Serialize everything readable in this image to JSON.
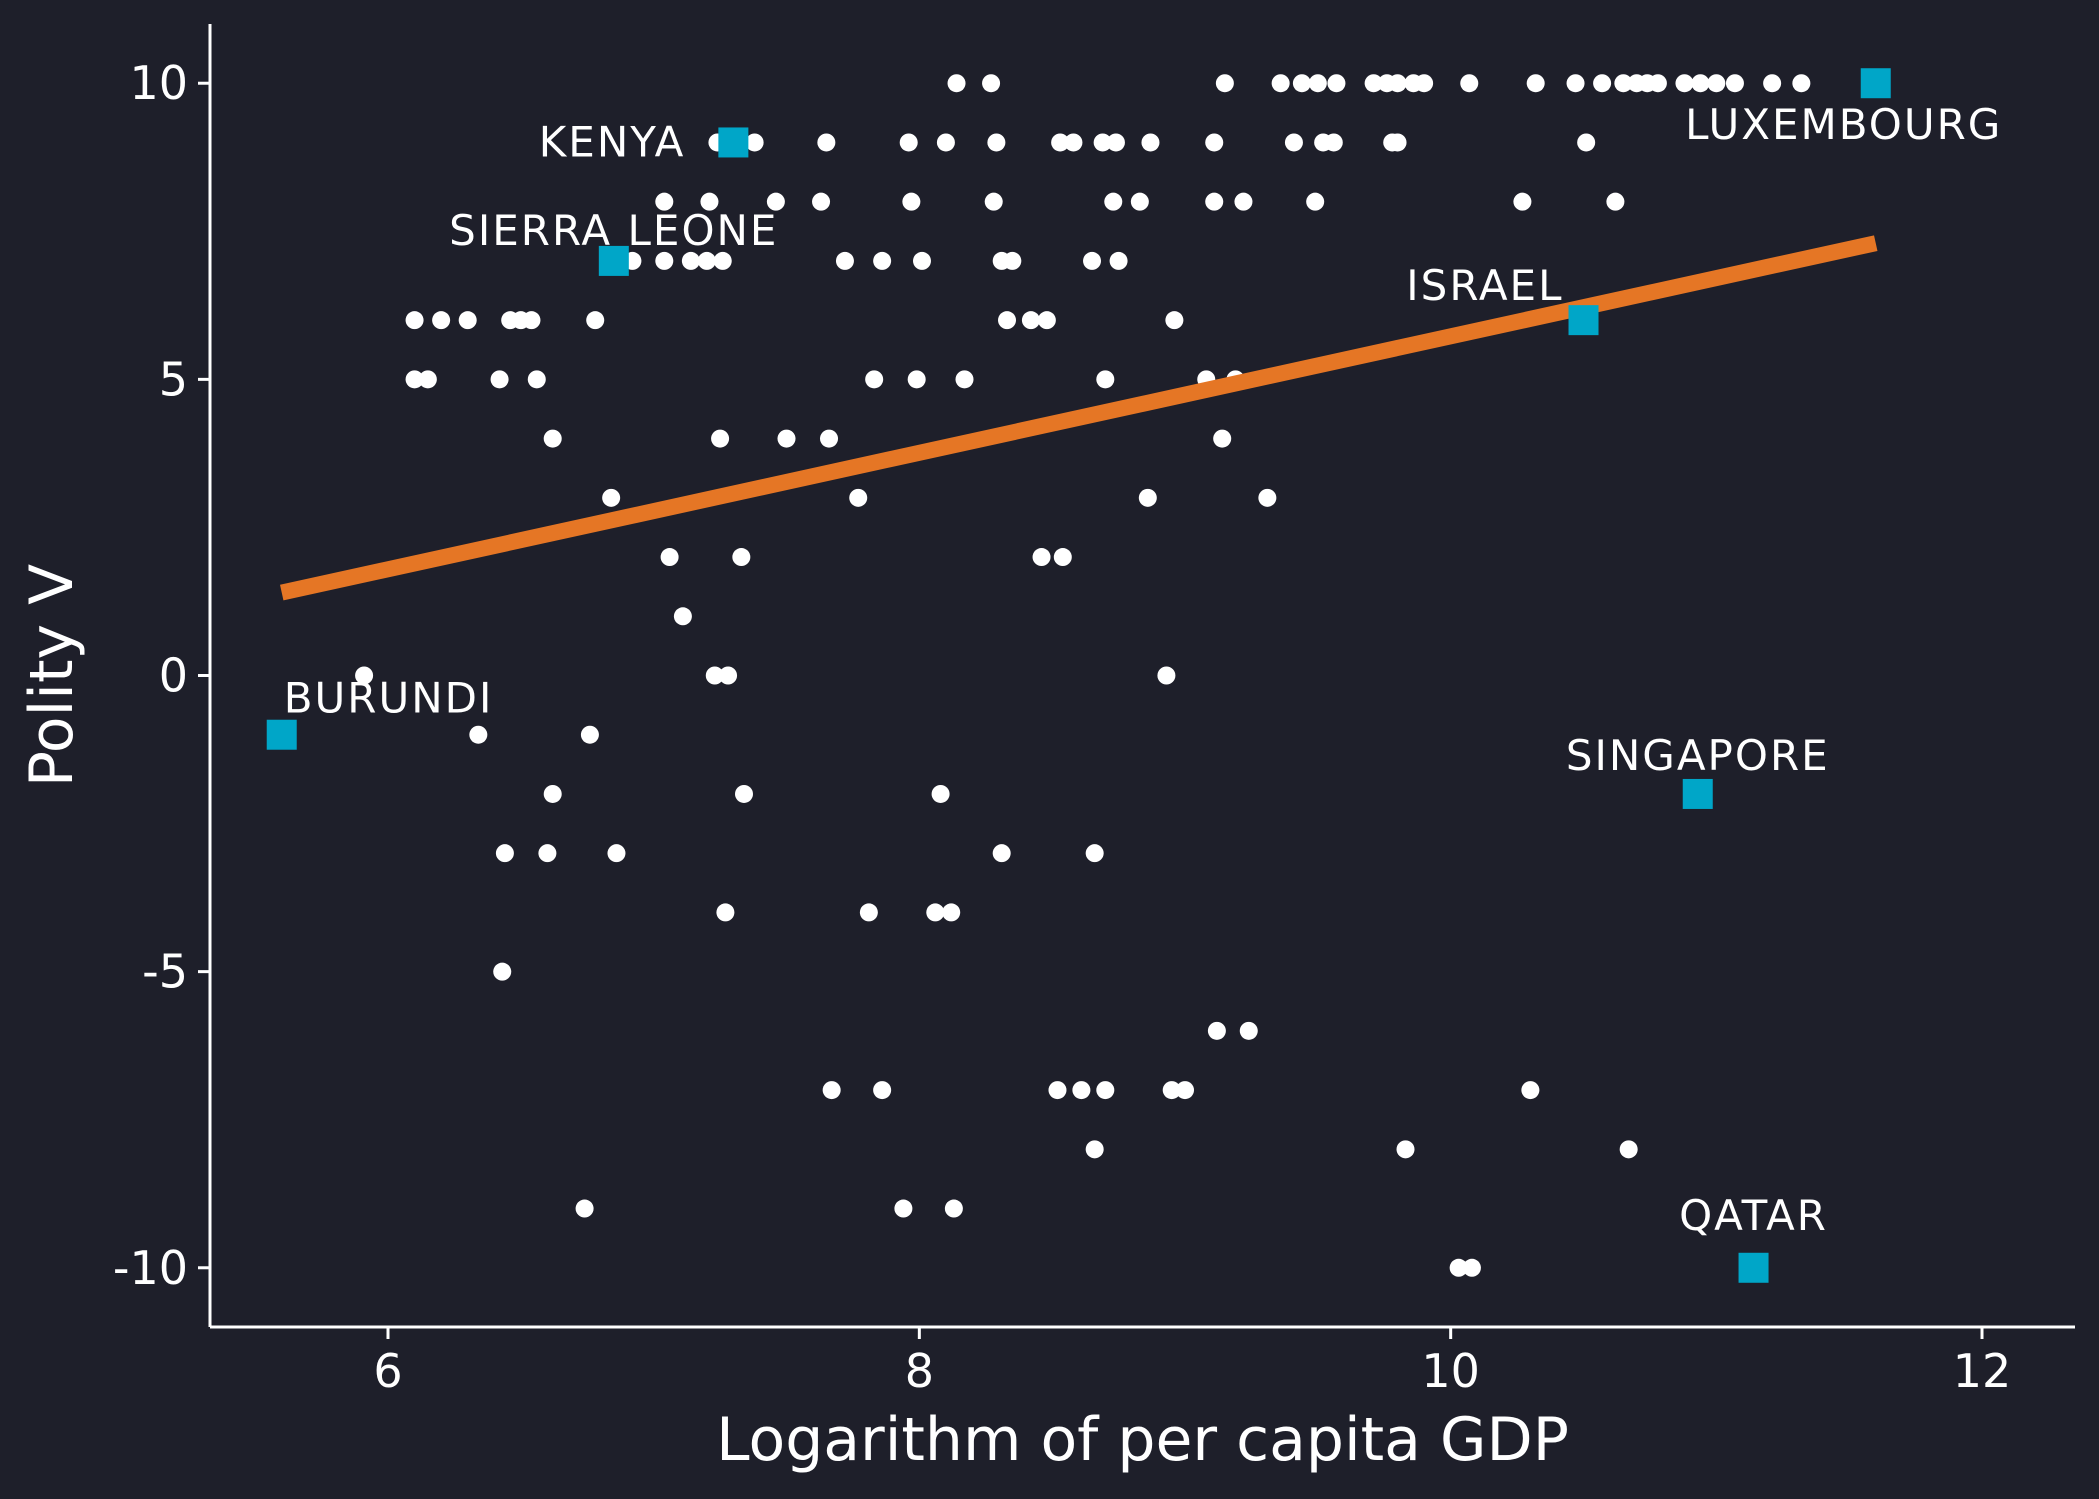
{
  "chart_data": {
    "type": "scatter",
    "title": "",
    "xlabel": "Logarithm of per capita GDP",
    "ylabel": "Polity V",
    "xlim": [
      5.33,
      12.35
    ],
    "ylim": [
      -11.0,
      11.0
    ],
    "xticks": [
      6,
      8,
      10,
      12
    ],
    "yticks": [
      -10,
      -5,
      0,
      5,
      10
    ],
    "ytick_labels": [
      "-10",
      "-5",
      "0",
      "5",
      "10"
    ],
    "grid": false,
    "legend": "none",
    "colors": {
      "background": "#1e1f2a",
      "points": "#ffffff",
      "highlight": "#00a6c8",
      "trend": "#e57625",
      "axis": "#ffffff"
    },
    "trend_line": {
      "x": [
        5.6,
        11.6
      ],
      "y": [
        1.4,
        7.3
      ]
    },
    "highlighted": [
      {
        "label": "KENYA",
        "x": 7.3,
        "y": 9
      },
      {
        "label": "SIERRA LEONE",
        "x": 6.85,
        "y": 7
      },
      {
        "label": "BURUNDI",
        "x": 5.6,
        "y": -1
      },
      {
        "label": "ISRAEL",
        "x": 10.5,
        "y": 6
      },
      {
        "label": "SINGAPORE",
        "x": 10.93,
        "y": -2
      },
      {
        "label": "QATAR",
        "x": 11.14,
        "y": -10
      },
      {
        "label": "LUXEMBOURG",
        "x": 11.6,
        "y": 10
      }
    ],
    "series": [
      {
        "points": [
          [
            8.14,
            10
          ],
          [
            8.27,
            10
          ],
          [
            9.15,
            10
          ],
          [
            9.36,
            10
          ],
          [
            9.44,
            10
          ],
          [
            9.5,
            10
          ],
          [
            9.57,
            10
          ],
          [
            9.71,
            10
          ],
          [
            9.76,
            10
          ],
          [
            9.8,
            10
          ],
          [
            9.86,
            10
          ],
          [
            9.9,
            10
          ],
          [
            10.07,
            10
          ],
          [
            10.32,
            10
          ],
          [
            10.47,
            10
          ],
          [
            10.57,
            10
          ],
          [
            10.65,
            10
          ],
          [
            10.7,
            10
          ],
          [
            10.74,
            10
          ],
          [
            10.78,
            10
          ],
          [
            10.88,
            10
          ],
          [
            10.94,
            10
          ],
          [
            11.0,
            10
          ],
          [
            11.07,
            10
          ],
          [
            11.21,
            10
          ],
          [
            11.32,
            10
          ],
          [
            7.24,
            9
          ],
          [
            7.38,
            9
          ],
          [
            7.65,
            9
          ],
          [
            7.96,
            9
          ],
          [
            8.1,
            9
          ],
          [
            8.29,
            9
          ],
          [
            8.53,
            9
          ],
          [
            8.58,
            9
          ],
          [
            8.69,
            9
          ],
          [
            8.74,
            9
          ],
          [
            8.87,
            9
          ],
          [
            9.11,
            9
          ],
          [
            9.41,
            9
          ],
          [
            9.52,
            9
          ],
          [
            9.56,
            9
          ],
          [
            9.78,
            9
          ],
          [
            9.8,
            9
          ],
          [
            10.51,
            9
          ],
          [
            7.04,
            8
          ],
          [
            7.21,
            8
          ],
          [
            7.46,
            8
          ],
          [
            7.63,
            8
          ],
          [
            7.97,
            8
          ],
          [
            8.28,
            8
          ],
          [
            8.73,
            8
          ],
          [
            8.83,
            8
          ],
          [
            9.11,
            8
          ],
          [
            9.22,
            8
          ],
          [
            9.49,
            8
          ],
          [
            10.27,
            8
          ],
          [
            10.62,
            8
          ],
          [
            6.92,
            7
          ],
          [
            7.04,
            7
          ],
          [
            7.14,
            7
          ],
          [
            7.2,
            7
          ],
          [
            7.26,
            7
          ],
          [
            7.72,
            7
          ],
          [
            7.86,
            7
          ],
          [
            8.01,
            7
          ],
          [
            8.31,
            7
          ],
          [
            8.35,
            7
          ],
          [
            8.65,
            7
          ],
          [
            8.75,
            7
          ],
          [
            6.1,
            6
          ],
          [
            6.2,
            6
          ],
          [
            6.3,
            6
          ],
          [
            6.46,
            6
          ],
          [
            6.5,
            6
          ],
          [
            6.54,
            6
          ],
          [
            6.78,
            6
          ],
          [
            8.33,
            6
          ],
          [
            8.42,
            6
          ],
          [
            8.48,
            6
          ],
          [
            8.96,
            6
          ],
          [
            6.1,
            5
          ],
          [
            6.15,
            5
          ],
          [
            6.42,
            5
          ],
          [
            6.56,
            5
          ],
          [
            7.83,
            5
          ],
          [
            7.99,
            5
          ],
          [
            8.17,
            5
          ],
          [
            8.7,
            5
          ],
          [
            9.08,
            5
          ],
          [
            9.19,
            5
          ],
          [
            6.62,
            4
          ],
          [
            7.25,
            4
          ],
          [
            7.5,
            4
          ],
          [
            7.66,
            4
          ],
          [
            9.14,
            4
          ],
          [
            6.84,
            3
          ],
          [
            7.77,
            3
          ],
          [
            8.86,
            3
          ],
          [
            9.31,
            3
          ],
          [
            7.06,
            2
          ],
          [
            7.33,
            2
          ],
          [
            8.46,
            2
          ],
          [
            8.54,
            2
          ],
          [
            7.11,
            1
          ],
          [
            5.91,
            0
          ],
          [
            7.23,
            0
          ],
          [
            7.28,
            0
          ],
          [
            8.93,
            0
          ],
          [
            6.34,
            -1
          ],
          [
            6.76,
            -1
          ],
          [
            6.62,
            -2
          ],
          [
            7.34,
            -2
          ],
          [
            8.08,
            -2
          ],
          [
            6.44,
            -3
          ],
          [
            6.6,
            -3
          ],
          [
            6.86,
            -3
          ],
          [
            8.31,
            -3
          ],
          [
            8.66,
            -3
          ],
          [
            7.27,
            -4
          ],
          [
            7.81,
            -4
          ],
          [
            8.06,
            -4
          ],
          [
            8.12,
            -4
          ],
          [
            6.43,
            -5
          ],
          [
            9.12,
            -6
          ],
          [
            9.24,
            -6
          ],
          [
            7.67,
            -7
          ],
          [
            7.86,
            -7
          ],
          [
            8.52,
            -7
          ],
          [
            8.61,
            -7
          ],
          [
            8.7,
            -7
          ],
          [
            8.95,
            -7
          ],
          [
            9.0,
            -7
          ],
          [
            10.3,
            -7
          ],
          [
            8.66,
            -8
          ],
          [
            9.83,
            -8
          ],
          [
            10.67,
            -8
          ],
          [
            6.74,
            -9
          ],
          [
            7.94,
            -9
          ],
          [
            8.13,
            -9
          ],
          [
            10.03,
            -10
          ],
          [
            10.08,
            -10
          ]
        ]
      }
    ]
  }
}
